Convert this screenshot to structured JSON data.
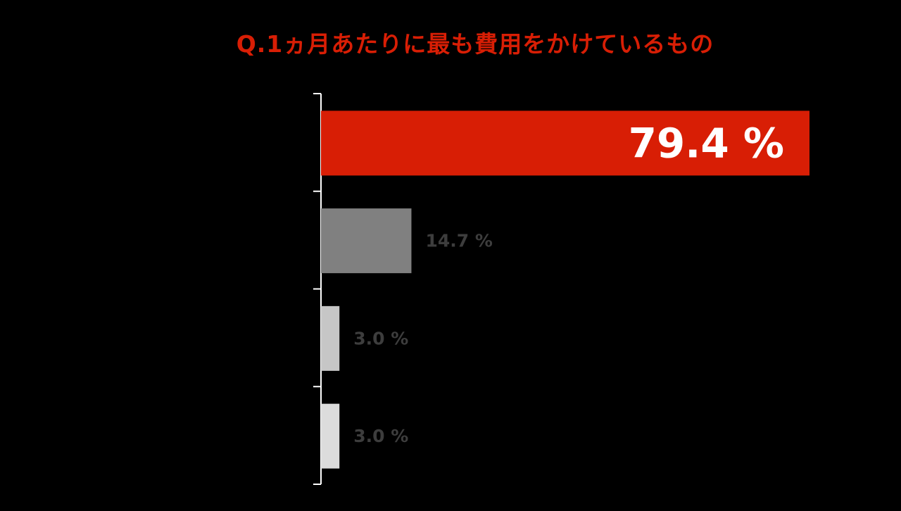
{
  "title": "Q.1ヵ月あたりに最も費用をかけているもの",
  "colors": {
    "title": "#d81e05",
    "axis": "#ffffff",
    "inside_label": "#ffffff",
    "outside_label": "#3d3d3d"
  },
  "chart_data": {
    "type": "bar",
    "orientation": "horizontal",
    "title": "Q.1ヵ月あたりに最も費用をかけているもの",
    "categories": [
      "",
      "",
      "",
      ""
    ],
    "values": [
      79.4,
      14.7,
      3.0,
      3.0
    ],
    "labels": [
      "79.4 %",
      "14.7 %",
      "3.0 %",
      "3.0 %"
    ],
    "colors": [
      "#d81e05",
      "#808080",
      "#c6c6c6",
      "#dcdcdc"
    ],
    "label_inside": [
      true,
      false,
      false,
      false
    ],
    "xlabel": "",
    "ylabel": "",
    "xlim": [
      0,
      80
    ],
    "grid": false,
    "legend": "none"
  }
}
